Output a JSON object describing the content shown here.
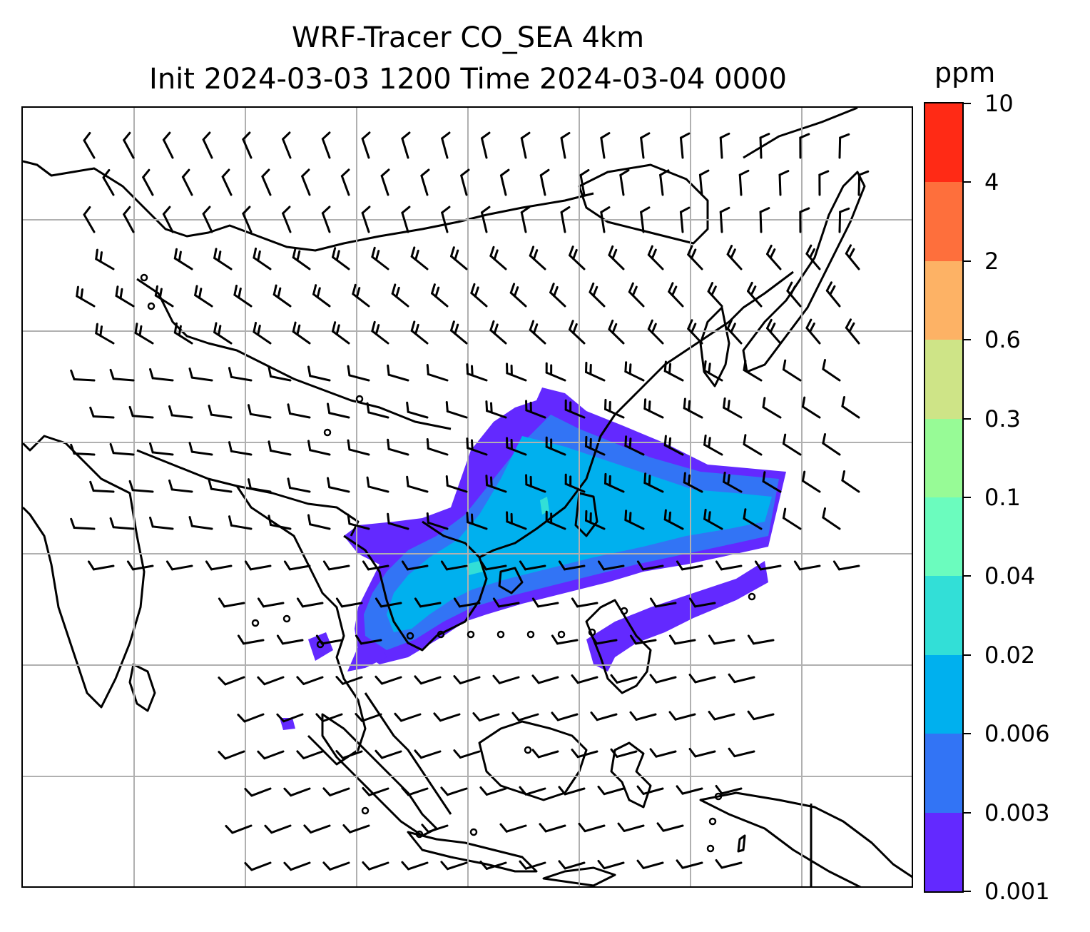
{
  "title": {
    "line1": "WRF-Tracer CO_SEA 4km",
    "line2": "Init 2024-03-03 1200 Time 2024-03-04 0000"
  },
  "colorbar": {
    "unit": "ppm",
    "levels": [
      "0.001",
      "0.003",
      "0.006",
      "0.02",
      "0.04",
      "0.1",
      "0.3",
      "0.6",
      "2",
      "4",
      "10"
    ],
    "colors": [
      "#6329ff",
      "#3274f5",
      "#00b0ee",
      "#32dfd7",
      "#6bfcbe",
      "#97fb96",
      "#cee487",
      "#fdb265",
      "#fe6f3c",
      "#ff2a15"
    ]
  },
  "map": {
    "coastline_color": "#000000",
    "gridline_color": "#b0b0b0",
    "wind_barb_color": "#000000"
  }
}
